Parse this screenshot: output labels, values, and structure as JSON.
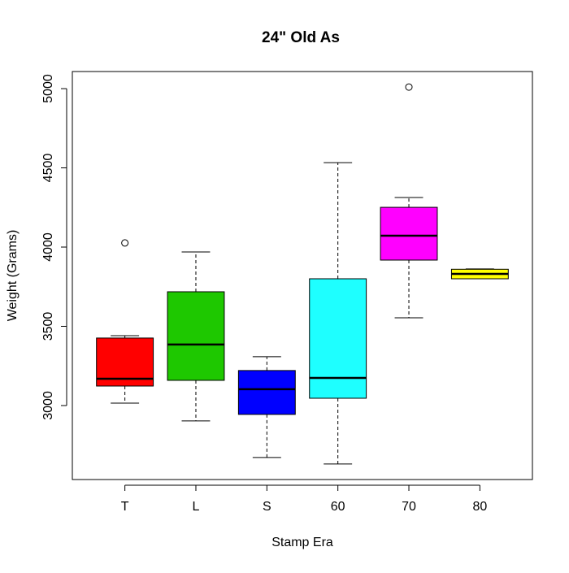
{
  "chart_data": {
    "type": "box",
    "title": "24\" Old As",
    "x_label": "Stamp Era",
    "y_label": "Weight (Grams)",
    "categories": [
      "T",
      "L",
      "S",
      "60",
      "70",
      "80"
    ],
    "colors": [
      "#ff0000",
      "#1ec800",
      "#0000ff",
      "#1effff",
      "#ff00ff",
      "#ffff00"
    ],
    "boxes": [
      {
        "min": 3015,
        "q1": 3123,
        "median": 3169,
        "q3": 3426,
        "max": 3441,
        "outliers": [
          4026
        ]
      },
      {
        "min": 2903,
        "q1": 3159,
        "median": 3385,
        "q3": 3718,
        "max": 3969,
        "outliers": []
      },
      {
        "min": 2672,
        "q1": 2944,
        "median": 3103,
        "q3": 3221,
        "max": 3308,
        "outliers": []
      },
      {
        "min": 2631,
        "q1": 3046,
        "median": 3174,
        "q3": 3800,
        "max": 4533,
        "outliers": []
      },
      {
        "min": 3554,
        "q1": 3918,
        "median": 4072,
        "q3": 4251,
        "max": 4313,
        "outliers": [
          5010
        ]
      },
      {
        "min": 3800,
        "q1": 3800,
        "median": 3831,
        "q3": 3860,
        "max": 3862,
        "outliers": []
      }
    ],
    "ylim": [
      2533,
      5108
    ],
    "yticks": [
      3000,
      3500,
      4000,
      4500,
      5000
    ]
  }
}
